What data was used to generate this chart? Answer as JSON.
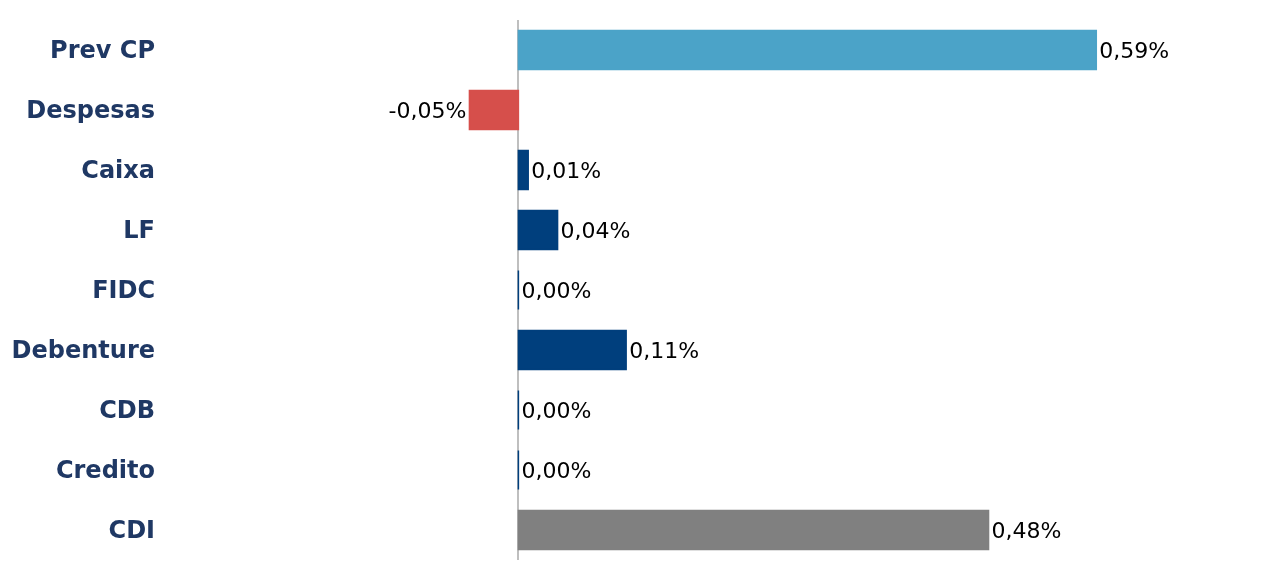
{
  "chart_data": {
    "type": "bar",
    "orientation": "horizontal",
    "categories": [
      "Prev CP",
      "Despesas",
      "Caixa",
      "LF",
      "FIDC",
      "Debenture",
      "CDB",
      "Credito",
      "CDI"
    ],
    "values": [
      0.59,
      -0.05,
      0.01,
      0.04,
      0.0,
      0.11,
      0.0,
      0.0,
      0.48
    ],
    "colors": [
      "#4ba3c8",
      "#d64f4b",
      "#003f7d",
      "#003f7d",
      "#003f7d",
      "#003f7d",
      "#003f7d",
      "#003f7d",
      "#808080"
    ],
    "value_labels": [
      "0,59%",
      "-0,05%",
      "0,01%",
      "0,04%",
      "0,00%",
      "0,11%",
      "0,00%",
      "0,00%",
      "0,48%"
    ],
    "legend": false
  }
}
